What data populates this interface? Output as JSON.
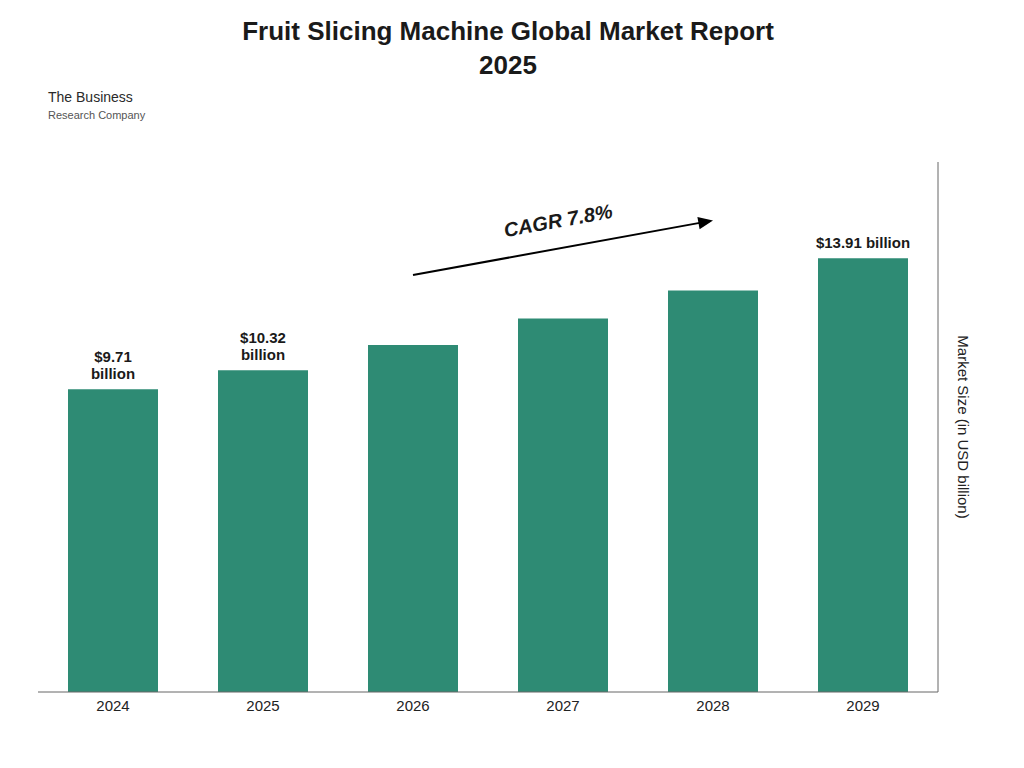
{
  "chart_data": {
    "type": "bar",
    "title": "Fruit Slicing Machine Global Market Report",
    "subtitle": "2025",
    "categories": [
      "2024",
      "2025",
      "2026",
      "2027",
      "2028",
      "2029"
    ],
    "values": [
      9.71,
      10.32,
      11.13,
      11.98,
      12.88,
      13.91
    ],
    "value_labels": [
      "$9.71\nbillion",
      "$10.32\nbillion",
      null,
      null,
      null,
      "$13.91 billion"
    ],
    "data_labels": true,
    "color": "#2E8B74",
    "y_label": "Market Size (in USD billion)",
    "ylim": [
      0,
      17
    ],
    "tick_labels": "x",
    "grid": false,
    "annotations": [
      "CAGR 7.8%",
      "The Business",
      "Research Company"
    ]
  }
}
